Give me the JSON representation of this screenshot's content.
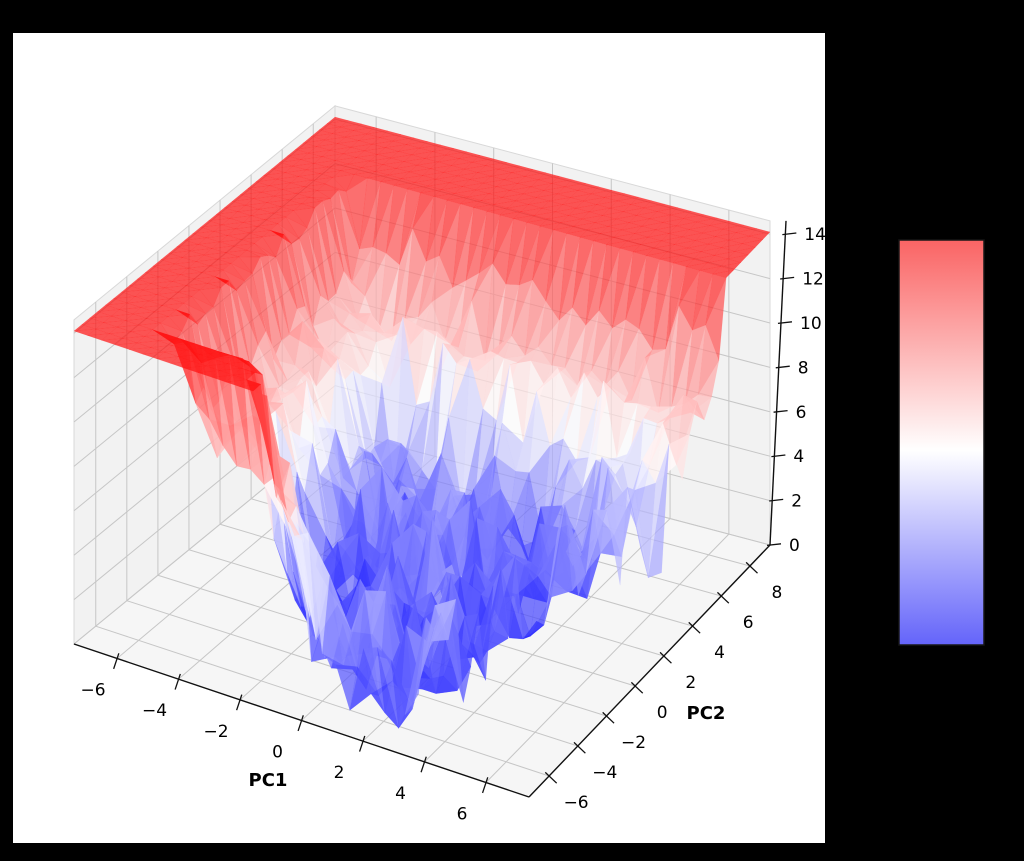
{
  "figure": {
    "background_color": "#000000",
    "axes_background_color": "#ffffff"
  },
  "chart_data": {
    "type": "surface_3d",
    "title": "",
    "xlabel": "PC1",
    "ylabel": "PC2",
    "x_ticks": {
      "values": [
        -6,
        -4,
        -2,
        0,
        2,
        4,
        6
      ],
      "labels": [
        "−6",
        "−4",
        "−2",
        "0",
        "2",
        "4",
        "6"
      ]
    },
    "y_ticks": {
      "values": [
        -6,
        -4,
        -2,
        0,
        2,
        4,
        6,
        8
      ],
      "labels": [
        "−6",
        "−4",
        "−2",
        "0",
        "2",
        "4",
        "6",
        "8"
      ]
    },
    "z_ticks": {
      "values": [
        0,
        2,
        4,
        6,
        8,
        10,
        12,
        14
      ],
      "labels": [
        "0",
        "2",
        "4",
        "6",
        "8",
        "10",
        "12",
        "14"
      ]
    },
    "xlim": [
      -7.4,
      7.4
    ],
    "ylim": [
      -7.4,
      9.4
    ],
    "zlim": [
      0,
      14.6
    ],
    "grid": true,
    "colormap": "blue-white-red (bwr)",
    "surface_alpha": 0.7,
    "pane_color": "#f2f2f2",
    "grid_color": "#c6c6c6",
    "colorbar": {
      "position": "right-on-black",
      "top_color": "#fa6464",
      "mid_color": "#ffffff",
      "bottom_color": "#6464fa",
      "white_stop_pct": 52,
      "tick_labels_visible": false
    },
    "surface": {
      "description": "Jagged loss-landscape surface over the PC1-PC2 plane: flat red plateau at z≈14.1 around the rim, a red fold/bench at z≈8.8 ringing the basin, noisy spiky descent to blue valley minima near z≈1, with a bare-floor notch at the front-right",
      "plateau_z": 14.1,
      "bench_z": 8.8,
      "valley_base_z": 2.5,
      "min_z": 0.6,
      "basin_rim": {
        "x_min": -5.3,
        "y_max": 6.3,
        "front_y": -5.6
      },
      "valley_dips": [
        {
          "x": -1.8,
          "y": -3.6,
          "depth": 1.7
        },
        {
          "x": 3.4,
          "y": -1.8,
          "depth": 1.4
        }
      ],
      "noise_amplitude": 2.8,
      "grid_n": 34,
      "seed": 42
    }
  }
}
